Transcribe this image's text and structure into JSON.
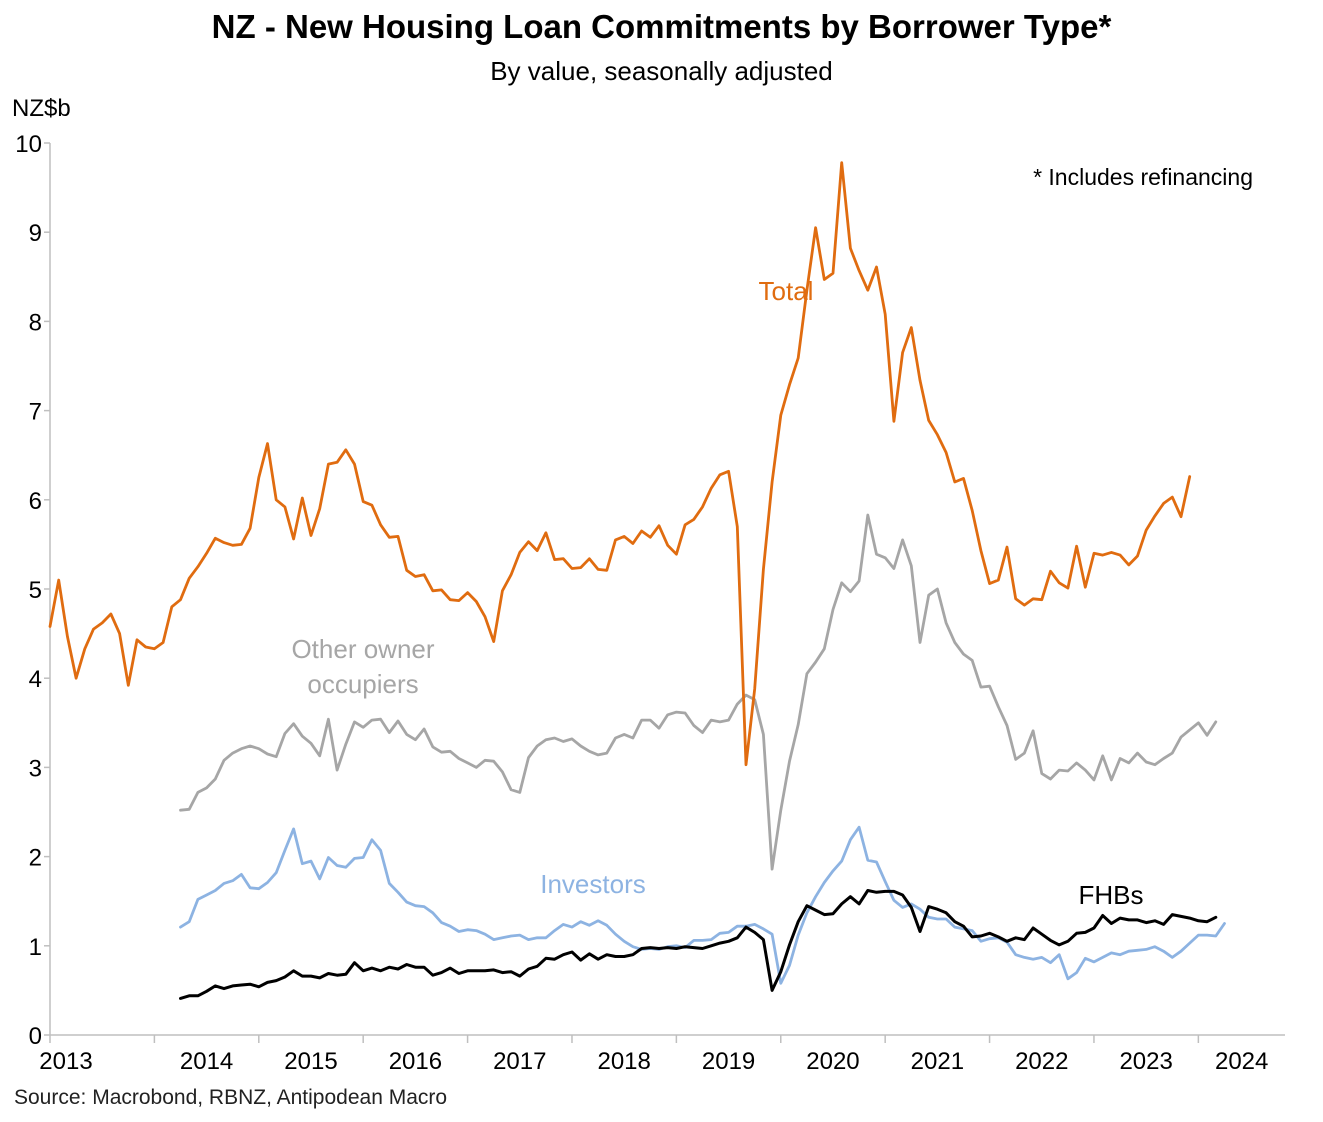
{
  "title": "NZ - New Housing Loan Commitments by Borrower Type*",
  "subtitle": "By value, seasonally adjusted",
  "source": "Source: Macrobond, RBNZ, Antipodean Macro",
  "chart_data": {
    "type": "line",
    "title": "NZ - New Housing Loan Commitments by Borrower Type*",
    "subtitle": "By value, seasonally adjusted",
    "ylabel": "NZ$b",
    "ylim": [
      0,
      10
    ],
    "y_ticks": [
      "0",
      "1",
      "2",
      "3",
      "4",
      "5",
      "6",
      "7",
      "8",
      "9",
      "10"
    ],
    "x_ticks": [
      "2013",
      "2014",
      "2015",
      "2016",
      "2017",
      "2018",
      "2019",
      "2020",
      "2021",
      "2022",
      "2023",
      "2024"
    ],
    "xlim": [
      2013.0,
      2024.83
    ],
    "grid": false,
    "annotation": "* Includes refinancing",
    "labels": {
      "total": "Total",
      "other": "Other owner\noccupiers",
      "other_line1": "Other owner",
      "other_line2": "occupiers",
      "investors": "Investors",
      "fhbs": "FHBs"
    },
    "colors": {
      "total": "#e06c10",
      "other": "#a6a6a6",
      "investors": "#8db3e2",
      "fhbs": "#000000"
    },
    "series": [
      {
        "name": "Total",
        "key": "total",
        "start": "2013-01",
        "values": [
          4.58,
          5.1,
          4.47,
          4.0,
          4.33,
          4.55,
          4.62,
          4.72,
          4.5,
          3.92,
          4.43,
          4.35,
          4.33,
          4.4,
          4.8,
          4.88,
          5.12,
          5.25,
          5.4,
          5.57,
          5.52,
          5.49,
          5.5,
          5.68,
          6.25,
          6.63,
          6.0,
          5.92,
          5.56,
          6.02,
          5.6,
          5.9,
          6.4,
          6.42,
          6.56,
          6.4,
          5.98,
          5.94,
          5.72,
          5.58,
          5.59,
          5.21,
          5.14,
          5.16,
          4.98,
          4.99,
          4.88,
          4.87,
          4.96,
          4.86,
          4.69,
          4.41,
          4.98,
          5.16,
          5.41,
          5.53,
          5.43,
          5.63,
          5.33,
          5.34,
          5.23,
          5.24,
          5.34,
          5.22,
          5.21,
          5.55,
          5.59,
          5.51,
          5.65,
          5.58,
          5.71,
          5.49,
          5.39,
          5.72,
          5.78,
          5.92,
          6.13,
          6.28,
          6.32,
          5.7,
          3.03,
          3.88,
          5.22,
          6.2,
          6.95,
          7.29,
          7.59,
          8.35,
          9.05,
          8.47,
          8.54,
          9.78,
          8.82,
          8.57,
          8.35,
          8.61,
          8.08,
          6.88,
          7.65,
          7.93,
          7.34,
          6.89,
          6.73,
          6.53,
          6.2,
          6.24,
          5.88,
          5.43,
          5.06,
          5.1,
          5.47,
          4.89,
          4.82,
          4.89,
          4.88,
          5.2,
          5.07,
          5.01,
          5.48,
          5.02,
          5.4,
          5.38,
          5.41,
          5.38,
          5.27,
          5.37,
          5.66,
          5.82,
          5.96,
          6.03,
          5.81,
          6.26
        ]
      },
      {
        "name": "Other owner occupiers",
        "key": "other",
        "start": "2014-04",
        "values": [
          2.52,
          2.53,
          2.72,
          2.77,
          2.87,
          3.08,
          3.16,
          3.21,
          3.24,
          3.21,
          3.15,
          3.12,
          3.38,
          3.49,
          3.35,
          3.27,
          3.13,
          3.54,
          2.97,
          3.26,
          3.51,
          3.45,
          3.53,
          3.54,
          3.39,
          3.52,
          3.37,
          3.31,
          3.43,
          3.23,
          3.17,
          3.18,
          3.1,
          3.05,
          3.0,
          3.08,
          3.07,
          2.95,
          2.75,
          2.72,
          3.11,
          3.24,
          3.31,
          3.33,
          3.29,
          3.32,
          3.24,
          3.18,
          3.14,
          3.16,
          3.33,
          3.37,
          3.33,
          3.53,
          3.53,
          3.44,
          3.59,
          3.62,
          3.61,
          3.47,
          3.39,
          3.53,
          3.51,
          3.53,
          3.71,
          3.81,
          3.76,
          3.37,
          1.86,
          2.52,
          3.07,
          3.48,
          4.05,
          4.18,
          4.33,
          4.77,
          5.07,
          4.97,
          5.09,
          5.83,
          5.39,
          5.35,
          5.23,
          5.55,
          5.26,
          4.4,
          4.93,
          5.0,
          4.62,
          4.4,
          4.27,
          4.2,
          3.9,
          3.91,
          3.68,
          3.47,
          3.09,
          3.16,
          3.41,
          2.93,
          2.87,
          2.97,
          2.96,
          3.05,
          2.97,
          2.86,
          3.13,
          2.86,
          3.1,
          3.05,
          3.16,
          3.06,
          3.03,
          3.1,
          3.16,
          3.34,
          3.42,
          3.5,
          3.36,
          3.51
        ]
      },
      {
        "name": "Investors",
        "key": "investors",
        "start": "2014-04",
        "values": [
          1.21,
          1.27,
          1.52,
          1.57,
          1.62,
          1.7,
          1.73,
          1.8,
          1.65,
          1.64,
          1.71,
          1.82,
          2.07,
          2.31,
          1.92,
          1.95,
          1.75,
          1.99,
          1.9,
          1.88,
          1.98,
          1.99,
          2.19,
          2.07,
          1.7,
          1.6,
          1.49,
          1.45,
          1.44,
          1.37,
          1.26,
          1.22,
          1.16,
          1.18,
          1.17,
          1.13,
          1.07,
          1.09,
          1.11,
          1.12,
          1.07,
          1.09,
          1.09,
          1.17,
          1.24,
          1.21,
          1.27,
          1.23,
          1.28,
          1.23,
          1.13,
          1.05,
          0.99,
          0.96,
          0.97,
          0.96,
          0.99,
          1.0,
          0.98,
          1.06,
          1.06,
          1.07,
          1.14,
          1.15,
          1.22,
          1.22,
          1.24,
          1.19,
          1.13,
          0.58,
          0.78,
          1.12,
          1.37,
          1.55,
          1.71,
          1.84,
          1.95,
          2.19,
          2.33,
          1.96,
          1.94,
          1.72,
          1.51,
          1.43,
          1.47,
          1.41,
          1.32,
          1.3,
          1.3,
          1.21,
          1.19,
          1.17,
          1.05,
          1.08,
          1.09,
          1.04,
          0.9,
          0.87,
          0.85,
          0.87,
          0.81,
          0.9,
          0.63,
          0.7,
          0.86,
          0.82,
          0.87,
          0.92,
          0.9,
          0.94,
          0.95,
          0.96,
          0.99,
          0.94,
          0.87,
          0.94,
          1.03,
          1.12,
          1.12,
          1.11,
          1.25
        ]
      },
      {
        "name": "FHBs",
        "key": "fhbs",
        "start": "2014-04",
        "values": [
          0.41,
          0.44,
          0.44,
          0.49,
          0.55,
          0.52,
          0.55,
          0.56,
          0.57,
          0.54,
          0.59,
          0.61,
          0.65,
          0.72,
          0.66,
          0.66,
          0.64,
          0.69,
          0.67,
          0.68,
          0.81,
          0.72,
          0.75,
          0.72,
          0.76,
          0.74,
          0.79,
          0.76,
          0.76,
          0.67,
          0.7,
          0.75,
          0.69,
          0.72,
          0.72,
          0.72,
          0.73,
          0.7,
          0.71,
          0.66,
          0.74,
          0.77,
          0.86,
          0.85,
          0.9,
          0.93,
          0.84,
          0.91,
          0.85,
          0.9,
          0.88,
          0.88,
          0.9,
          0.97,
          0.98,
          0.97,
          0.98,
          0.97,
          0.99,
          0.98,
          0.97,
          1.0,
          1.03,
          1.05,
          1.09,
          1.21,
          1.15,
          1.07,
          0.5,
          0.71,
          1.01,
          1.27,
          1.45,
          1.4,
          1.35,
          1.36,
          1.47,
          1.55,
          1.47,
          1.62,
          1.6,
          1.61,
          1.61,
          1.57,
          1.43,
          1.16,
          1.44,
          1.41,
          1.37,
          1.27,
          1.22,
          1.1,
          1.11,
          1.14,
          1.1,
          1.05,
          1.09,
          1.07,
          1.2,
          1.13,
          1.06,
          1.01,
          1.05,
          1.14,
          1.15,
          1.2,
          1.34,
          1.25,
          1.31,
          1.29,
          1.29,
          1.26,
          1.28,
          1.24,
          1.35,
          1.33,
          1.31,
          1.28,
          1.27,
          1.32
        ]
      }
    ]
  }
}
